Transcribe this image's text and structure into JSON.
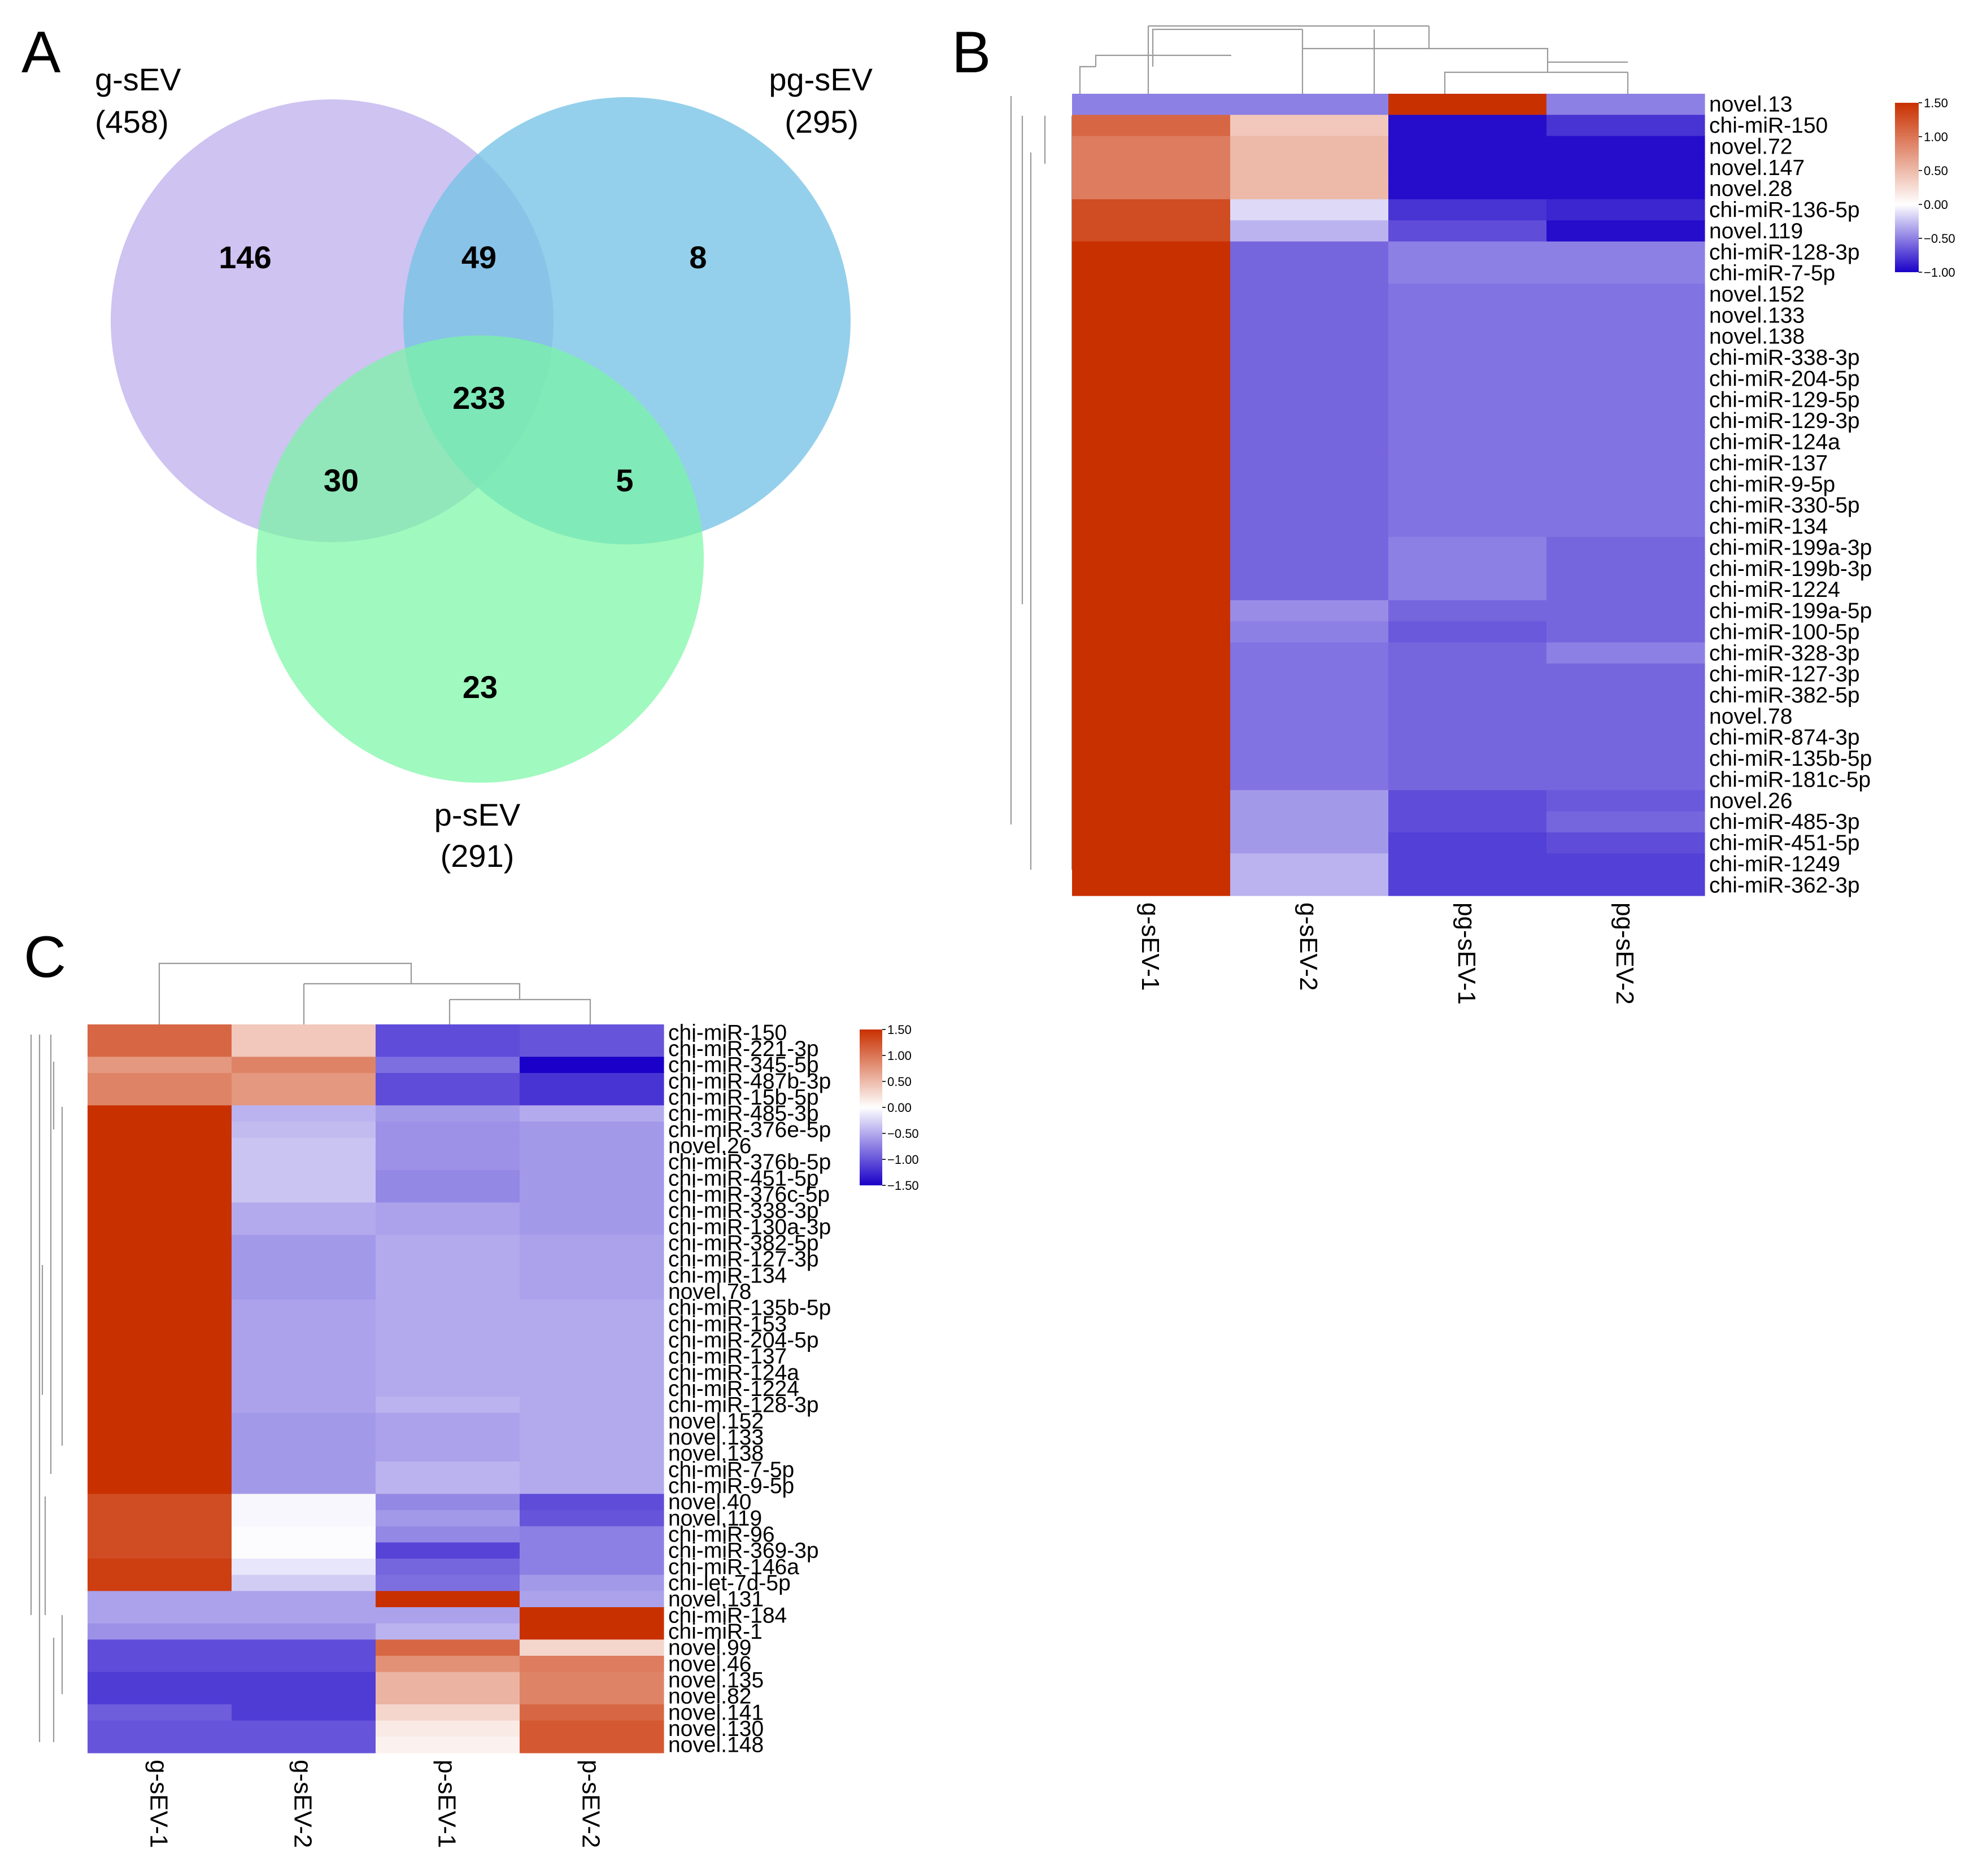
{
  "panel_labels": {
    "a": "A",
    "b": "B",
    "c": "C"
  },
  "colors": {
    "low": "#1a00c8",
    "mid": "#ffffff",
    "high": "#c93000",
    "dendrogram": "#9a9a9a"
  },
  "chart_data": [
    {
      "type": "venn",
      "panel": "A",
      "sets": [
        {
          "name": "g-sEV",
          "total": "(458)",
          "color": "#c6b9ef"
        },
        {
          "name": "pg-sEV",
          "total": "(295)",
          "color": "#76c3e6"
        },
        {
          "name": "p-sEV",
          "total": "(291)",
          "color": "#78f7a3"
        }
      ],
      "regions": [
        {
          "sets": [
            "g-sEV"
          ],
          "count": "146"
        },
        {
          "sets": [
            "g-sEV",
            "pg-sEV"
          ],
          "count": "49"
        },
        {
          "sets": [
            "pg-sEV"
          ],
          "count": "8"
        },
        {
          "sets": [
            "g-sEV",
            "pg-sEV",
            "p-sEV"
          ],
          "count": "233"
        },
        {
          "sets": [
            "g-sEV",
            "p-sEV"
          ],
          "count": "30"
        },
        {
          "sets": [
            "pg-sEV",
            "p-sEV"
          ],
          "count": "5"
        },
        {
          "sets": [
            "p-sEV"
          ],
          "count": "23"
        }
      ]
    },
    {
      "type": "heatmap",
      "panel": "B",
      "columns": [
        "g-sEV-1",
        "g-sEV-2",
        "pg-sEV-1",
        "pg-sEV-2"
      ],
      "rows": [
        "novel.13",
        "chi-miR-150",
        "novel.72",
        "novel.147",
        "novel.28",
        "chi-miR-136-5p",
        "novel.119",
        "chi-miR-128-3p",
        "chi-miR-7-5p",
        "novel.152",
        "novel.133",
        "novel.138",
        "chi-miR-338-3p",
        "chi-miR-204-5p",
        "chi-miR-129-5p",
        "chi-miR-129-3p",
        "chi-miR-124a",
        "chi-miR-137",
        "chi-miR-9-5p",
        "chi-miR-330-5p",
        "chi-miR-134",
        "chi-miR-199a-3p",
        "chi-miR-199b-3p",
        "chi-miR-1224",
        "chi-miR-199a-5p",
        "chi-miR-100-5p",
        "chi-miR-328-3p",
        "chi-miR-127-3p",
        "chi-miR-382-5p",
        "novel.78",
        "chi-miR-874-3p",
        "chi-miR-135b-5p",
        "chi-miR-181c-5p",
        "novel.26",
        "chi-miR-485-3p",
        "chi-miR-451-5p",
        "chi-miR-1249",
        "chi-miR-362-3p"
      ],
      "values": [
        [
          -0.5,
          -0.5,
          1.5,
          -0.5
        ],
        [
          1.1,
          0.4,
          -0.95,
          -0.8
        ],
        [
          0.95,
          0.5,
          -0.95,
          -0.95
        ],
        [
          0.95,
          0.5,
          -0.95,
          -0.95
        ],
        [
          0.95,
          0.5,
          -0.95,
          -0.95
        ],
        [
          1.3,
          -0.15,
          -0.8,
          -0.85
        ],
        [
          1.3,
          -0.3,
          -0.7,
          -0.95
        ],
        [
          1.5,
          -0.6,
          -0.5,
          -0.5
        ],
        [
          1.5,
          -0.6,
          -0.5,
          -0.5
        ],
        [
          1.5,
          -0.6,
          -0.55,
          -0.55
        ],
        [
          1.5,
          -0.6,
          -0.55,
          -0.55
        ],
        [
          1.5,
          -0.6,
          -0.55,
          -0.55
        ],
        [
          1.5,
          -0.6,
          -0.55,
          -0.55
        ],
        [
          1.5,
          -0.6,
          -0.55,
          -0.55
        ],
        [
          1.5,
          -0.6,
          -0.55,
          -0.55
        ],
        [
          1.5,
          -0.6,
          -0.55,
          -0.55
        ],
        [
          1.5,
          -0.6,
          -0.55,
          -0.55
        ],
        [
          1.5,
          -0.6,
          -0.55,
          -0.55
        ],
        [
          1.5,
          -0.6,
          -0.55,
          -0.55
        ],
        [
          1.5,
          -0.6,
          -0.55,
          -0.55
        ],
        [
          1.5,
          -0.6,
          -0.55,
          -0.55
        ],
        [
          1.5,
          -0.6,
          -0.5,
          -0.6
        ],
        [
          1.5,
          -0.6,
          -0.5,
          -0.6
        ],
        [
          1.5,
          -0.6,
          -0.5,
          -0.6
        ],
        [
          1.5,
          -0.45,
          -0.6,
          -0.6
        ],
        [
          1.5,
          -0.5,
          -0.65,
          -0.6
        ],
        [
          1.5,
          -0.55,
          -0.6,
          -0.5
        ],
        [
          1.5,
          -0.55,
          -0.6,
          -0.6
        ],
        [
          1.5,
          -0.55,
          -0.6,
          -0.6
        ],
        [
          1.5,
          -0.55,
          -0.6,
          -0.6
        ],
        [
          1.5,
          -0.55,
          -0.6,
          -0.6
        ],
        [
          1.5,
          -0.55,
          -0.6,
          -0.6
        ],
        [
          1.5,
          -0.55,
          -0.6,
          -0.6
        ],
        [
          1.5,
          -0.4,
          -0.7,
          -0.65
        ],
        [
          1.5,
          -0.4,
          -0.7,
          -0.6
        ],
        [
          1.5,
          -0.4,
          -0.75,
          -0.7
        ],
        [
          1.5,
          -0.3,
          -0.75,
          -0.75
        ],
        [
          1.5,
          -0.3,
          -0.75,
          -0.75
        ]
      ],
      "legend": {
        "min": -1.0,
        "max": 1.5,
        "ticks": [
          "1.50",
          "1.00",
          "0.50",
          "0.00",
          "-0.50",
          "-1.00"
        ]
      }
    },
    {
      "type": "heatmap",
      "panel": "C",
      "columns": [
        "g-sEV-1",
        "g-sEV-2",
        "p-sEV-1",
        "p-sEV-2"
      ],
      "rows": [
        "chi-miR-150",
        "chi-miR-221-3p",
        "chi-miR-345-5p",
        "chi-miR-487b-3p",
        "chi-miR-15b-5p",
        "chi-miR-485-3p",
        "chi-miR-376e-5p",
        "novel.26",
        "chi-miR-376b-5p",
        "chi-miR-451-5p",
        "chi-miR-376c-5p",
        "chi-miR-338-3p",
        "chi-miR-130a-3p",
        "chi-miR-382-5p",
        "chi-miR-127-3p",
        "chi-miR-134",
        "novel.78",
        "chi-miR-135b-5p",
        "chi-miR-153",
        "chi-miR-204-5p",
        "chi-miR-137",
        "chi-miR-124a",
        "chi-miR-1224",
        "chi-miR-128-3p",
        "novel.152",
        "novel.133",
        "novel.138",
        "chi-miR-7-5p",
        "chi-miR-9-5p",
        "novel.40",
        "novel.119",
        "chi-miR-96",
        "chi-miR-369-3p",
        "chi-miR-146a",
        "chi-let-7d-5p",
        "novel.131",
        "chi-miR-184",
        "chi-miR-1",
        "novel.99",
        "novel.46",
        "novel.135",
        "novel.82",
        "novel.141",
        "novel.130",
        "novel.148"
      ],
      "values": [
        [
          1.1,
          0.4,
          -1.05,
          -1.0
        ],
        [
          1.1,
          0.4,
          -1.05,
          -1.0
        ],
        [
          0.75,
          0.9,
          -0.85,
          -1.5
        ],
        [
          0.9,
          0.75,
          -1.05,
          -1.2
        ],
        [
          0.9,
          0.75,
          -1.05,
          -1.2
        ],
        [
          1.5,
          -0.45,
          -0.6,
          -0.5
        ],
        [
          1.5,
          -0.4,
          -0.65,
          -0.6
        ],
        [
          1.5,
          -0.35,
          -0.65,
          -0.6
        ],
        [
          1.5,
          -0.35,
          -0.65,
          -0.6
        ],
        [
          1.5,
          -0.35,
          -0.7,
          -0.6
        ],
        [
          1.5,
          -0.35,
          -0.7,
          -0.6
        ],
        [
          1.5,
          -0.5,
          -0.55,
          -0.6
        ],
        [
          1.5,
          -0.5,
          -0.55,
          -0.6
        ],
        [
          1.5,
          -0.6,
          -0.5,
          -0.55
        ],
        [
          1.5,
          -0.6,
          -0.5,
          -0.55
        ],
        [
          1.5,
          -0.6,
          -0.5,
          -0.55
        ],
        [
          1.5,
          -0.6,
          -0.5,
          -0.55
        ],
        [
          1.5,
          -0.55,
          -0.5,
          -0.5
        ],
        [
          1.5,
          -0.55,
          -0.5,
          -0.5
        ],
        [
          1.5,
          -0.55,
          -0.5,
          -0.5
        ],
        [
          1.5,
          -0.55,
          -0.5,
          -0.5
        ],
        [
          1.5,
          -0.55,
          -0.5,
          -0.5
        ],
        [
          1.5,
          -0.55,
          -0.5,
          -0.5
        ],
        [
          1.5,
          -0.55,
          -0.45,
          -0.5
        ],
        [
          1.5,
          -0.6,
          -0.55,
          -0.5
        ],
        [
          1.5,
          -0.6,
          -0.55,
          -0.5
        ],
        [
          1.5,
          -0.6,
          -0.55,
          -0.5
        ],
        [
          1.5,
          -0.6,
          -0.45,
          -0.5
        ],
        [
          1.5,
          -0.6,
          -0.45,
          -0.5
        ],
        [
          1.3,
          -0.05,
          -0.7,
          -1.05
        ],
        [
          1.3,
          -0.05,
          -0.6,
          -1.0
        ],
        [
          1.3,
          -0.02,
          -0.7,
          -0.75
        ],
        [
          1.3,
          -0.02,
          -1.1,
          -0.75
        ],
        [
          1.4,
          -0.15,
          -0.9,
          -0.75
        ],
        [
          1.4,
          -0.3,
          -0.85,
          -0.6
        ],
        [
          -0.55,
          -0.55,
          1.5,
          -0.55
        ],
        [
          -0.55,
          -0.55,
          -0.55,
          1.5
        ],
        [
          -0.65,
          -0.65,
          -0.45,
          1.5
        ],
        [
          -1.05,
          -1.05,
          1.1,
          0.3
        ],
        [
          -1.05,
          -1.05,
          0.8,
          0.95
        ],
        [
          -1.15,
          -1.15,
          0.55,
          0.9
        ],
        [
          -1.15,
          -1.15,
          0.55,
          0.9
        ],
        [
          -0.95,
          -1.15,
          0.3,
          1.1
        ],
        [
          -1.0,
          -1.0,
          0.15,
          1.2
        ],
        [
          -1.0,
          -1.0,
          0.1,
          1.2
        ]
      ],
      "legend": {
        "min": -1.5,
        "max": 1.5,
        "ticks": [
          "1.50",
          "1.00",
          "0.50",
          "0.00",
          "-0.50",
          "-1.00",
          "-1.50"
        ]
      }
    }
  ]
}
